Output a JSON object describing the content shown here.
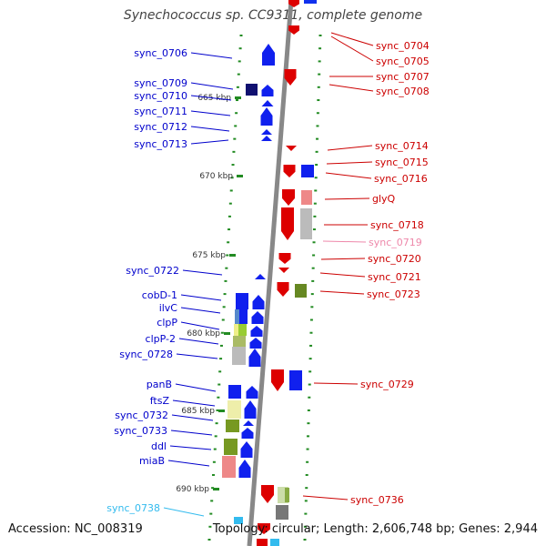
{
  "title": "Synechococcus sp. CC9311, complete genome",
  "footer": {
    "accession": "Accession: NC_008319",
    "summary": "Topology: circular; Length: 2,606,748 bp; Genes: 2,944"
  },
  "colors": {
    "left_label": "#0000cc",
    "right_label": "#cc0000",
    "highlight_label": "#33bbee",
    "pink_label": "#ee88aa",
    "backbone": "#888888",
    "tick": "#228b22"
  },
  "kbp_markers": [
    "665 kbp",
    "670 kbp",
    "675 kbp",
    "680 kbp",
    "685 kbp",
    "690 kbp"
  ],
  "left_genes": [
    "sync_0706",
    "sync_0709",
    "sync_0710",
    "sync_0711",
    "sync_0712",
    "sync_0713",
    "sync_0722",
    "cobD-1",
    "ilvC",
    "clpP",
    "clpP-2",
    "sync_0728",
    "panB",
    "ftsZ",
    "sync_0732",
    "sync_0733",
    "ddl",
    "miaB",
    "sync_0738"
  ],
  "right_genes": [
    "sync_0704",
    "sync_0705",
    "sync_0707",
    "sync_0708",
    "sync_0714",
    "sync_0715",
    "sync_0716",
    "glyQ",
    "sync_0718",
    "sync_0719",
    "sync_0720",
    "sync_0721",
    "sync_0723",
    "sync_0729",
    "sync_0736"
  ]
}
